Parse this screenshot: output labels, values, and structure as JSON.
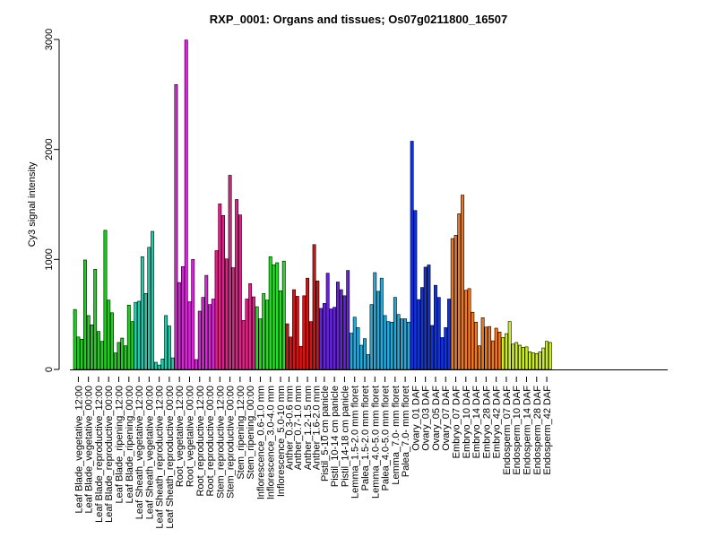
{
  "chart_data": {
    "type": "bar",
    "title": "RXP_0001: Organs and tissues; Os07g0211800_16507",
    "xlabel": "",
    "ylabel": "Cy3 signal intensity",
    "ylim": [
      0,
      3000
    ],
    "yticks": [
      "0",
      "1000",
      "2000",
      "3000"
    ],
    "grid": false,
    "groups": [
      {
        "label": "Leaf Blade_vegetative_12:00",
        "color": "#22cc22",
        "values": [
          545,
          295,
          275
        ]
      },
      {
        "label": "Leaf Blade_vegetative_00:00",
        "color": "#22cc22",
        "values": [
          995,
          490,
          405
        ]
      },
      {
        "label": "Leaf Blade_reproductive_12:00",
        "color": "#22cc22",
        "values": [
          910,
          345,
          255
        ]
      },
      {
        "label": "Leaf Blade_reproductive_00:00",
        "color": "#22cc22",
        "values": [
          1265,
          630,
          515
        ]
      },
      {
        "label": "Leaf Blade_ripening_12:00",
        "color": "#22cc22",
        "values": [
          150,
          245,
          285
        ]
      },
      {
        "label": "Leaf Blade_ripening_00:00",
        "color": "#22cc22",
        "values": [
          215,
          585,
          435
        ]
      },
      {
        "label": "Leaf Sheath_vegetative_12:00",
        "color": "#22ccaa",
        "values": [
          610,
          620,
          1025
        ]
      },
      {
        "label": "Leaf Sheath_vegetative_00:00",
        "color": "#22ccaa",
        "values": [
          690,
          1110,
          1255
        ]
      },
      {
        "label": "Leaf Sheath_reproductive_12:00",
        "color": "#22ccaa",
        "values": [
          65,
          40,
          95
        ]
      },
      {
        "label": "Leaf Sheath_reproductive_00:00",
        "color": "#22ccaa",
        "values": [
          490,
          395,
          105
        ]
      },
      {
        "label": "Root_vegetative_12:00",
        "color": "#dd22dd",
        "values": [
          2590,
          790,
          935
        ]
      },
      {
        "label": "Root_vegetative_00:00",
        "color": "#dd22dd",
        "values": [
          2995,
          615,
          1000
        ]
      },
      {
        "label": "Root_reproductive_12:00",
        "color": "#dd22dd",
        "values": [
          90,
          530,
          655
        ]
      },
      {
        "label": "Root_reproductive_00:00",
        "color": "#dd22dd",
        "values": [
          855,
          590,
          640
        ]
      },
      {
        "label": "Stem_reproductive_12:00",
        "color": "#dd2288",
        "values": [
          1080,
          1505,
          1400
        ]
      },
      {
        "label": "Stem_reproductive_00:00",
        "color": "#dd2288",
        "values": [
          1005,
          1765,
          925
        ]
      },
      {
        "label": "Stem_ripening_12:00",
        "color": "#dd2288",
        "values": [
          1545,
          1405,
          445
        ]
      },
      {
        "label": "Stem_ripening_00:00",
        "color": "#dd2288",
        "values": [
          640,
          780,
          660
        ]
      },
      {
        "label": "Inflorescence_0.6-1.0 mm",
        "color": "#22dd22",
        "values": [
          570,
          460,
          690
        ]
      },
      {
        "label": "Inflorescence_3.0-4.0 mm",
        "color": "#22dd22",
        "values": [
          630,
          1025,
          950
        ]
      },
      {
        "label": "Inflorescence_5.0-10 mm",
        "color": "#22dd22",
        "values": [
          970,
          715,
          985
        ]
      },
      {
        "label": "Anther_0.3-0.6 mm",
        "color": "#dd1111",
        "values": [
          415,
          295
        ]
      },
      {
        "label": "Anther_0.7-1.0 mm",
        "color": "#dd1111",
        "values": [
          725,
          665,
          210
        ]
      },
      {
        "label": "Anther_1.2-1.5 mm",
        "color": "#dd1111",
        "values": [
          670,
          830,
          435
        ]
      },
      {
        "label": "Anther_1.6-2.0 mm",
        "color": "#dd1111",
        "values": [
          1135,
          805
        ]
      },
      {
        "label": "Pistil_5-10 cm panicle",
        "color": "#6622dd",
        "values": [
          555,
          600,
          875
        ]
      },
      {
        "label": "Pistil_10-14 cm panicle",
        "color": "#6622dd",
        "values": [
          550,
          565,
          795
        ]
      },
      {
        "label": "Pistil_14-18 cm panicle",
        "color": "#6622dd",
        "values": [
          725,
          670,
          900
        ]
      },
      {
        "label": "Lemma_1.5-2.0 mm floret",
        "color": "#22aadd",
        "values": [
          330,
          475,
          380
        ]
      },
      {
        "label": "Palea_1.5-2.0 mm floret",
        "color": "#22aadd",
        "values": [
          220,
          280,
          135
        ]
      },
      {
        "label": "Lemma_4.0-5.0 mm floret",
        "color": "#22aadd",
        "values": [
          590,
          880,
          710
        ]
      },
      {
        "label": "Palea_4.0-5.0 mm floret",
        "color": "#22aadd",
        "values": [
          830,
          490,
          435
        ]
      },
      {
        "label": "Lemma_7.0- mm floret",
        "color": "#22aadd",
        "values": [
          430,
          655,
          500
        ]
      },
      {
        "label": "Palea_7.0- mm floret",
        "color": "#22aadd",
        "values": [
          460,
          460,
          430
        ]
      },
      {
        "label": "Ovary_01 DAF",
        "color": "#1133dd",
        "values": [
          2075,
          1445,
          635
        ]
      },
      {
        "label": "Ovary_03 DAF",
        "color": "#1133dd",
        "values": [
          745,
          930,
          950
        ]
      },
      {
        "label": "Ovary_05 DAF",
        "color": "#1133dd",
        "values": [
          400,
          765,
          655
        ]
      },
      {
        "label": "Ovary_07 DAF",
        "color": "#1133dd",
        "values": [
          290,
          380,
          640
        ]
      },
      {
        "label": "Embryo_07 DAF",
        "color": "#ee7722",
        "values": [
          1190,
          1220,
          1415
        ]
      },
      {
        "label": "Embryo_10 DAF",
        "color": "#ee7722",
        "values": [
          1585,
          720,
          735
        ]
      },
      {
        "label": "Embryo_14 DAF",
        "color": "#ee7722",
        "values": [
          520,
          430,
          215
        ]
      },
      {
        "label": "Embryo_28 DAF",
        "color": "#ee7722",
        "values": [
          470,
          385,
          390
        ]
      },
      {
        "label": "Embryo_42 DAF",
        "color": "#ee7722",
        "values": [
          260,
          375,
          340
        ]
      },
      {
        "label": "Endosperm_07 DAF",
        "color": "#ccee22",
        "values": [
          290,
          325,
          435
        ]
      },
      {
        "label": "Endosperm_10 DAF",
        "color": "#ccee22",
        "values": [
          230,
          245,
          220
        ]
      },
      {
        "label": "Endosperm_14 DAF",
        "color": "#ccee22",
        "values": [
          200,
          205,
          160
        ]
      },
      {
        "label": "Endosperm_28 DAF",
        "color": "#ccee22",
        "values": [
          150,
          145,
          160
        ]
      },
      {
        "label": "Endosperm_42 DAF",
        "color": "#ccee22",
        "values": [
          195,
          255,
          245
        ]
      }
    ]
  }
}
